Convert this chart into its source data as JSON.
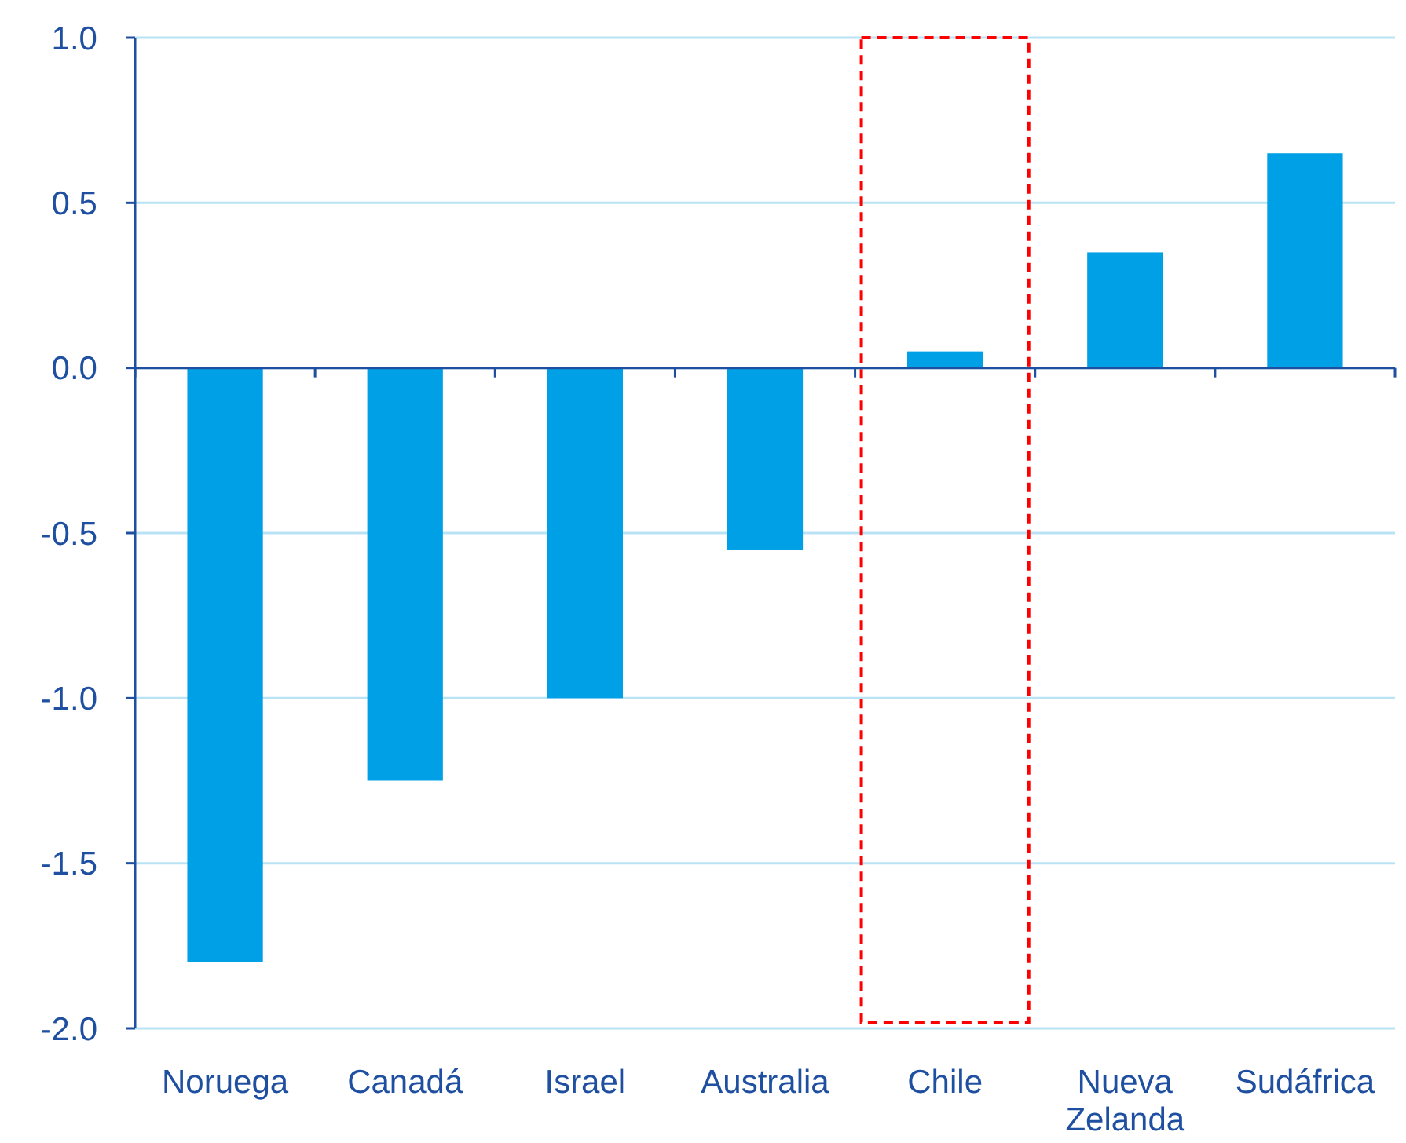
{
  "chart_data": {
    "type": "bar",
    "categories": [
      "Noruega",
      "Canadá",
      "Israel",
      "Australia",
      "Chile",
      "Nueva Zelanda",
      "Sudáfrica"
    ],
    "values": [
      -1.8,
      -1.25,
      -1.0,
      -0.55,
      0.05,
      0.35,
      0.65
    ],
    "color": "#00a0e6",
    "ylim": [
      -2,
      1
    ],
    "yticks": [
      {
        "value": -2,
        "label": "-2.0"
      },
      {
        "value": -1.5,
        "label": "-1.5"
      },
      {
        "value": -1,
        "label": "-1.0"
      },
      {
        "value": -0.5,
        "label": "-0.5"
      },
      {
        "value": 0,
        "label": "0.0"
      },
      {
        "value": 0.5,
        "label": "0.5"
      },
      {
        "value": 1,
        "label": "1.0"
      }
    ],
    "grid": "y",
    "ref_lines": [
      {
        "axis": "y",
        "value": 0,
        "color": "#1f4fa0"
      }
    ]
  }
}
